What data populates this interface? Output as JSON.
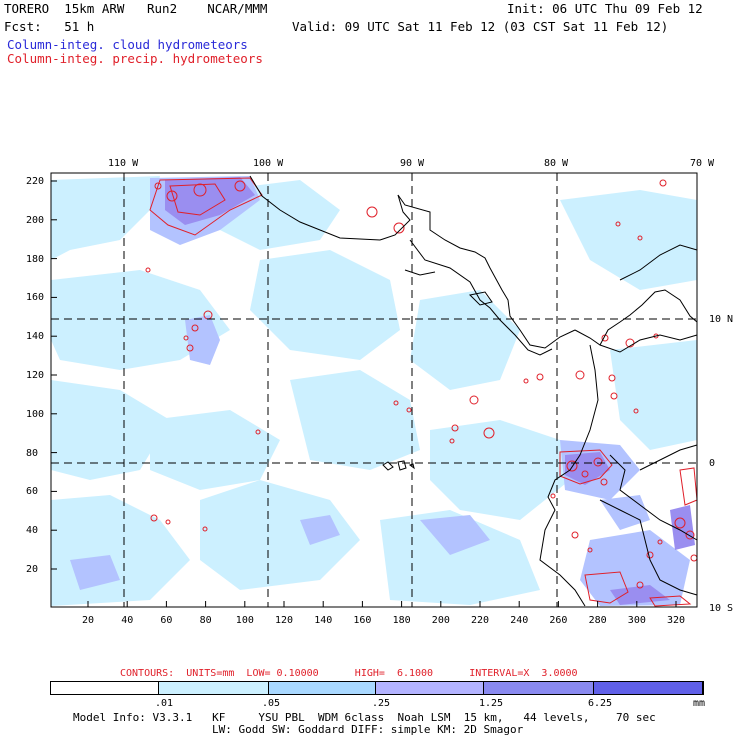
{
  "header": {
    "model": "TORERO  15km ARW   Run2    NCAR/MMM",
    "init": "Init: 06 UTC Thu 09 Feb 12",
    "fcst": "Fcst:   51 h",
    "valid": "Valid: 09 UTC Sat 11 Feb 12 (03 CST Sat 11 Feb 12)",
    "legend_cloud": "Column-integ. cloud hydrometeors",
    "legend_precip": "Column-integ. precip. hydrometeors"
  },
  "map": {
    "top_lon_labels": [
      "110 W",
      "100 W",
      "90 W",
      "80 W",
      "70 W"
    ],
    "right_lat_labels": [
      "10 N",
      "0",
      "10 S"
    ],
    "left_axis_ticks": [
      "220",
      "200",
      "180",
      "160",
      "140",
      "120",
      "100",
      "80",
      "60",
      "40",
      "20"
    ],
    "bottom_axis_ticks": [
      "20",
      "40",
      "60",
      "80",
      "100",
      "120",
      "140",
      "160",
      "180",
      "200",
      "220",
      "240",
      "260",
      "280",
      "300",
      "320"
    ],
    "colors": {
      "fill_light": "#ccf0ff",
      "fill_mid": "#b3c3ff",
      "fill_dark": "#9a8ef0",
      "contour": "#e0202a",
      "coast": "#000000",
      "grid": "#000000"
    }
  },
  "contours": {
    "label": "CONTOURS:  UNITS=mm  LOW= 0.10000      HIGH=  6.1000      INTERVAL=X  3.0000"
  },
  "colorbar": {
    "ticks": [
      ".01",
      ".05",
      ".25",
      "1.25",
      "6.25"
    ],
    "units": "mm",
    "colors": [
      "#ffffff",
      "#ccf0ff",
      "#a9d8ff",
      "#b3b3ff",
      "#8a8af0",
      "#6060e8",
      "#2a2ae0"
    ]
  },
  "footer": {
    "line1": "Model Info: V3.3.1   KF     YSU PBL  WDM 6class  Noah LSM  15 km,   44 levels,    70 sec",
    "line2": "LW: Godd SW: Goddard DIFF: simple KM: 2D Smagor"
  }
}
